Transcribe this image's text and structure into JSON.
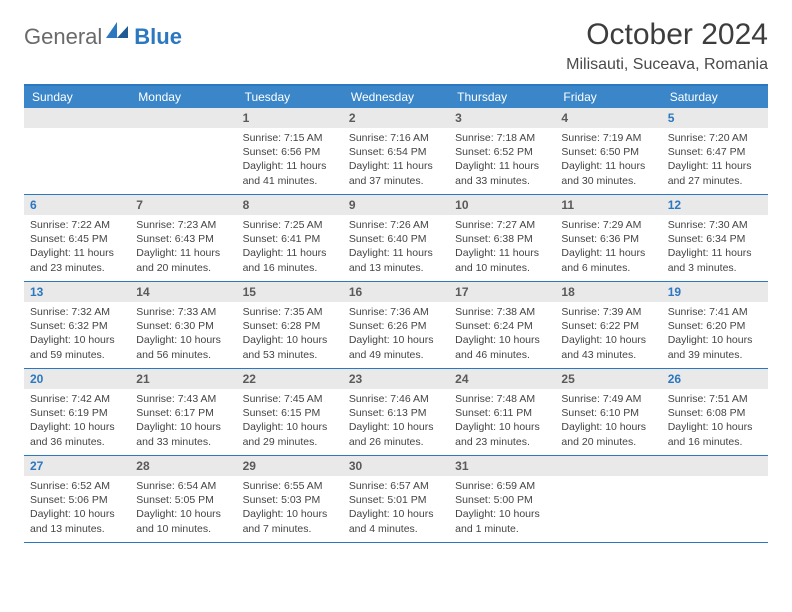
{
  "logo": {
    "general": "General",
    "blue": "Blue",
    "mark_color": "#2b77c0"
  },
  "title": "October 2024",
  "location": "Milisauti, Suceava, Romania",
  "colors": {
    "accent": "#2b77c0",
    "header_row": "#3a86c8",
    "daynum_bg": "#e9e9e9",
    "text": "#3a3a3a"
  },
  "days_of_week": [
    "Sunday",
    "Monday",
    "Tuesday",
    "Wednesday",
    "Thursday",
    "Friday",
    "Saturday"
  ],
  "weeks": [
    [
      null,
      null,
      {
        "n": "1",
        "sunrise": "7:15 AM",
        "sunset": "6:56 PM",
        "daylight": "11 hours and 41 minutes."
      },
      {
        "n": "2",
        "sunrise": "7:16 AM",
        "sunset": "6:54 PM",
        "daylight": "11 hours and 37 minutes."
      },
      {
        "n": "3",
        "sunrise": "7:18 AM",
        "sunset": "6:52 PM",
        "daylight": "11 hours and 33 minutes."
      },
      {
        "n": "4",
        "sunrise": "7:19 AM",
        "sunset": "6:50 PM",
        "daylight": "11 hours and 30 minutes."
      },
      {
        "n": "5",
        "sunrise": "7:20 AM",
        "sunset": "6:47 PM",
        "daylight": "11 hours and 27 minutes."
      }
    ],
    [
      {
        "n": "6",
        "sunrise": "7:22 AM",
        "sunset": "6:45 PM",
        "daylight": "11 hours and 23 minutes."
      },
      {
        "n": "7",
        "sunrise": "7:23 AM",
        "sunset": "6:43 PM",
        "daylight": "11 hours and 20 minutes."
      },
      {
        "n": "8",
        "sunrise": "7:25 AM",
        "sunset": "6:41 PM",
        "daylight": "11 hours and 16 minutes."
      },
      {
        "n": "9",
        "sunrise": "7:26 AM",
        "sunset": "6:40 PM",
        "daylight": "11 hours and 13 minutes."
      },
      {
        "n": "10",
        "sunrise": "7:27 AM",
        "sunset": "6:38 PM",
        "daylight": "11 hours and 10 minutes."
      },
      {
        "n": "11",
        "sunrise": "7:29 AM",
        "sunset": "6:36 PM",
        "daylight": "11 hours and 6 minutes."
      },
      {
        "n": "12",
        "sunrise": "7:30 AM",
        "sunset": "6:34 PM",
        "daylight": "11 hours and 3 minutes."
      }
    ],
    [
      {
        "n": "13",
        "sunrise": "7:32 AM",
        "sunset": "6:32 PM",
        "daylight": "10 hours and 59 minutes."
      },
      {
        "n": "14",
        "sunrise": "7:33 AM",
        "sunset": "6:30 PM",
        "daylight": "10 hours and 56 minutes."
      },
      {
        "n": "15",
        "sunrise": "7:35 AM",
        "sunset": "6:28 PM",
        "daylight": "10 hours and 53 minutes."
      },
      {
        "n": "16",
        "sunrise": "7:36 AM",
        "sunset": "6:26 PM",
        "daylight": "10 hours and 49 minutes."
      },
      {
        "n": "17",
        "sunrise": "7:38 AM",
        "sunset": "6:24 PM",
        "daylight": "10 hours and 46 minutes."
      },
      {
        "n": "18",
        "sunrise": "7:39 AM",
        "sunset": "6:22 PM",
        "daylight": "10 hours and 43 minutes."
      },
      {
        "n": "19",
        "sunrise": "7:41 AM",
        "sunset": "6:20 PM",
        "daylight": "10 hours and 39 minutes."
      }
    ],
    [
      {
        "n": "20",
        "sunrise": "7:42 AM",
        "sunset": "6:19 PM",
        "daylight": "10 hours and 36 minutes."
      },
      {
        "n": "21",
        "sunrise": "7:43 AM",
        "sunset": "6:17 PM",
        "daylight": "10 hours and 33 minutes."
      },
      {
        "n": "22",
        "sunrise": "7:45 AM",
        "sunset": "6:15 PM",
        "daylight": "10 hours and 29 minutes."
      },
      {
        "n": "23",
        "sunrise": "7:46 AM",
        "sunset": "6:13 PM",
        "daylight": "10 hours and 26 minutes."
      },
      {
        "n": "24",
        "sunrise": "7:48 AM",
        "sunset": "6:11 PM",
        "daylight": "10 hours and 23 minutes."
      },
      {
        "n": "25",
        "sunrise": "7:49 AM",
        "sunset": "6:10 PM",
        "daylight": "10 hours and 20 minutes."
      },
      {
        "n": "26",
        "sunrise": "7:51 AM",
        "sunset": "6:08 PM",
        "daylight": "10 hours and 16 minutes."
      }
    ],
    [
      {
        "n": "27",
        "sunrise": "6:52 AM",
        "sunset": "5:06 PM",
        "daylight": "10 hours and 13 minutes."
      },
      {
        "n": "28",
        "sunrise": "6:54 AM",
        "sunset": "5:05 PM",
        "daylight": "10 hours and 10 minutes."
      },
      {
        "n": "29",
        "sunrise": "6:55 AM",
        "sunset": "5:03 PM",
        "daylight": "10 hours and 7 minutes."
      },
      {
        "n": "30",
        "sunrise": "6:57 AM",
        "sunset": "5:01 PM",
        "daylight": "10 hours and 4 minutes."
      },
      {
        "n": "31",
        "sunrise": "6:59 AM",
        "sunset": "5:00 PM",
        "daylight": "10 hours and 1 minute."
      },
      null,
      null
    ]
  ],
  "labels": {
    "sunrise": "Sunrise:",
    "sunset": "Sunset:",
    "daylight": "Daylight:"
  }
}
